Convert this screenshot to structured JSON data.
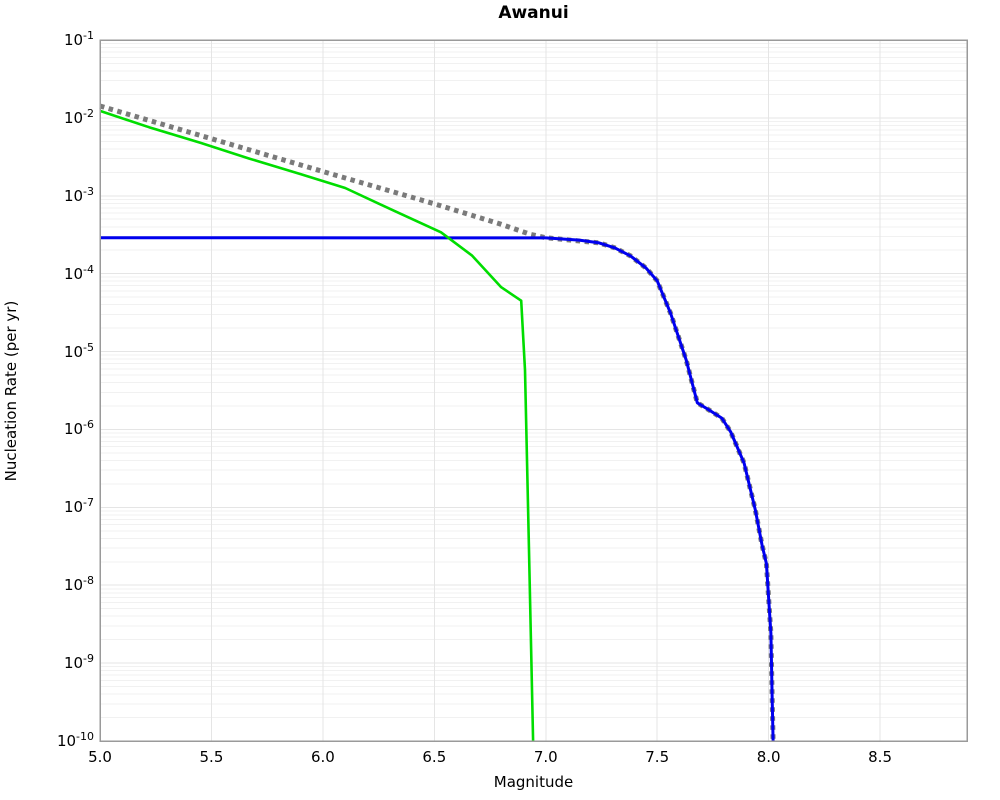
{
  "chart_data": {
    "type": "line",
    "title": "Awanui",
    "xlabel": "Magnitude",
    "ylabel": "Nucleation Rate (per yr)",
    "x_axis": {
      "min": 5.0,
      "max": 8.89,
      "ticks": [
        5.0,
        5.5,
        6.0,
        6.5,
        7.0,
        7.5,
        8.0,
        8.5
      ]
    },
    "y_axis": {
      "scale": "log",
      "min_exp": -10,
      "max_exp": -1,
      "tick_exponents": [
        -1,
        -2,
        -3,
        -4,
        -5,
        -6,
        -7,
        -8,
        -9,
        -10
      ]
    },
    "grid": {
      "show_minor_log": true,
      "major_color": "#e5e5e5",
      "minor_color": "#f1f1f1"
    },
    "frame_color": "#9a9a9a",
    "legend": "none",
    "series": [
      {
        "name": "gray-dotted-line",
        "color": "#7a7a7a",
        "width": 5,
        "dash": "4.5 4.5",
        "points": [
          [
            5.0,
            0.0142
          ],
          [
            5.5,
            0.0054
          ],
          [
            6.0,
            0.00205
          ],
          [
            6.5,
            0.00079
          ],
          [
            6.8,
            0.00043
          ],
          [
            6.93,
            0.00032
          ],
          [
            7.0,
            0.00029
          ],
          [
            7.24,
            0.000248
          ],
          [
            7.31,
            0.000214
          ],
          [
            7.38,
            0.000169
          ],
          [
            7.45,
            0.000118
          ],
          [
            7.5,
            8.1e-05
          ],
          [
            7.56,
            3.1e-05
          ],
          [
            7.63,
            7.8e-06
          ],
          [
            7.68,
            2.2e-06
          ],
          [
            7.73,
            1.8e-06
          ],
          [
            7.79,
            1.4e-06
          ],
          [
            7.83,
            9.3e-07
          ],
          [
            7.89,
            3.7e-07
          ],
          [
            7.94,
            9.3e-08
          ],
          [
            7.97,
            3.3e-08
          ],
          [
            7.99,
            1.9e-08
          ],
          [
            8.01,
            2.4e-09
          ],
          [
            8.016,
            3.4e-10
          ],
          [
            8.02,
            1e-10
          ]
        ]
      },
      {
        "name": "blue-solid-line",
        "color": "#0000ee",
        "width": 3,
        "dash": "",
        "points": [
          [
            5.0,
            0.00029
          ],
          [
            7.0,
            0.000288
          ],
          [
            7.15,
            0.00027
          ],
          [
            7.24,
            0.000248
          ],
          [
            7.31,
            0.000214
          ],
          [
            7.38,
            0.000169
          ],
          [
            7.45,
            0.000118
          ],
          [
            7.5,
            8.1e-05
          ],
          [
            7.56,
            3.1e-05
          ],
          [
            7.63,
            7.8e-06
          ],
          [
            7.68,
            2.2e-06
          ],
          [
            7.73,
            1.8e-06
          ],
          [
            7.79,
            1.4e-06
          ],
          [
            7.83,
            9.3e-07
          ],
          [
            7.89,
            3.7e-07
          ],
          [
            7.94,
            9.3e-08
          ],
          [
            7.97,
            3.3e-08
          ],
          [
            7.99,
            1.9e-08
          ],
          [
            8.01,
            2.4e-09
          ],
          [
            8.016,
            3.4e-10
          ],
          [
            8.02,
            1e-10
          ]
        ]
      },
      {
        "name": "green-solid-line",
        "color": "#00dd00",
        "width": 2.6,
        "dash": "",
        "points": [
          [
            5.0,
            0.0123
          ],
          [
            5.22,
            0.0076
          ],
          [
            5.45,
            0.0048
          ],
          [
            5.67,
            0.003
          ],
          [
            5.9,
            0.0019
          ],
          [
            6.1,
            0.00126
          ],
          [
            6.31,
            0.00066
          ],
          [
            6.53,
            0.00034
          ],
          [
            6.67,
            0.00017
          ],
          [
            6.8,
            6.7e-05
          ],
          [
            6.89,
            4.5e-05
          ],
          [
            6.907,
            5.8e-06
          ],
          [
            6.925,
            2.8e-08
          ],
          [
            6.943,
            1e-10
          ]
        ]
      }
    ]
  }
}
